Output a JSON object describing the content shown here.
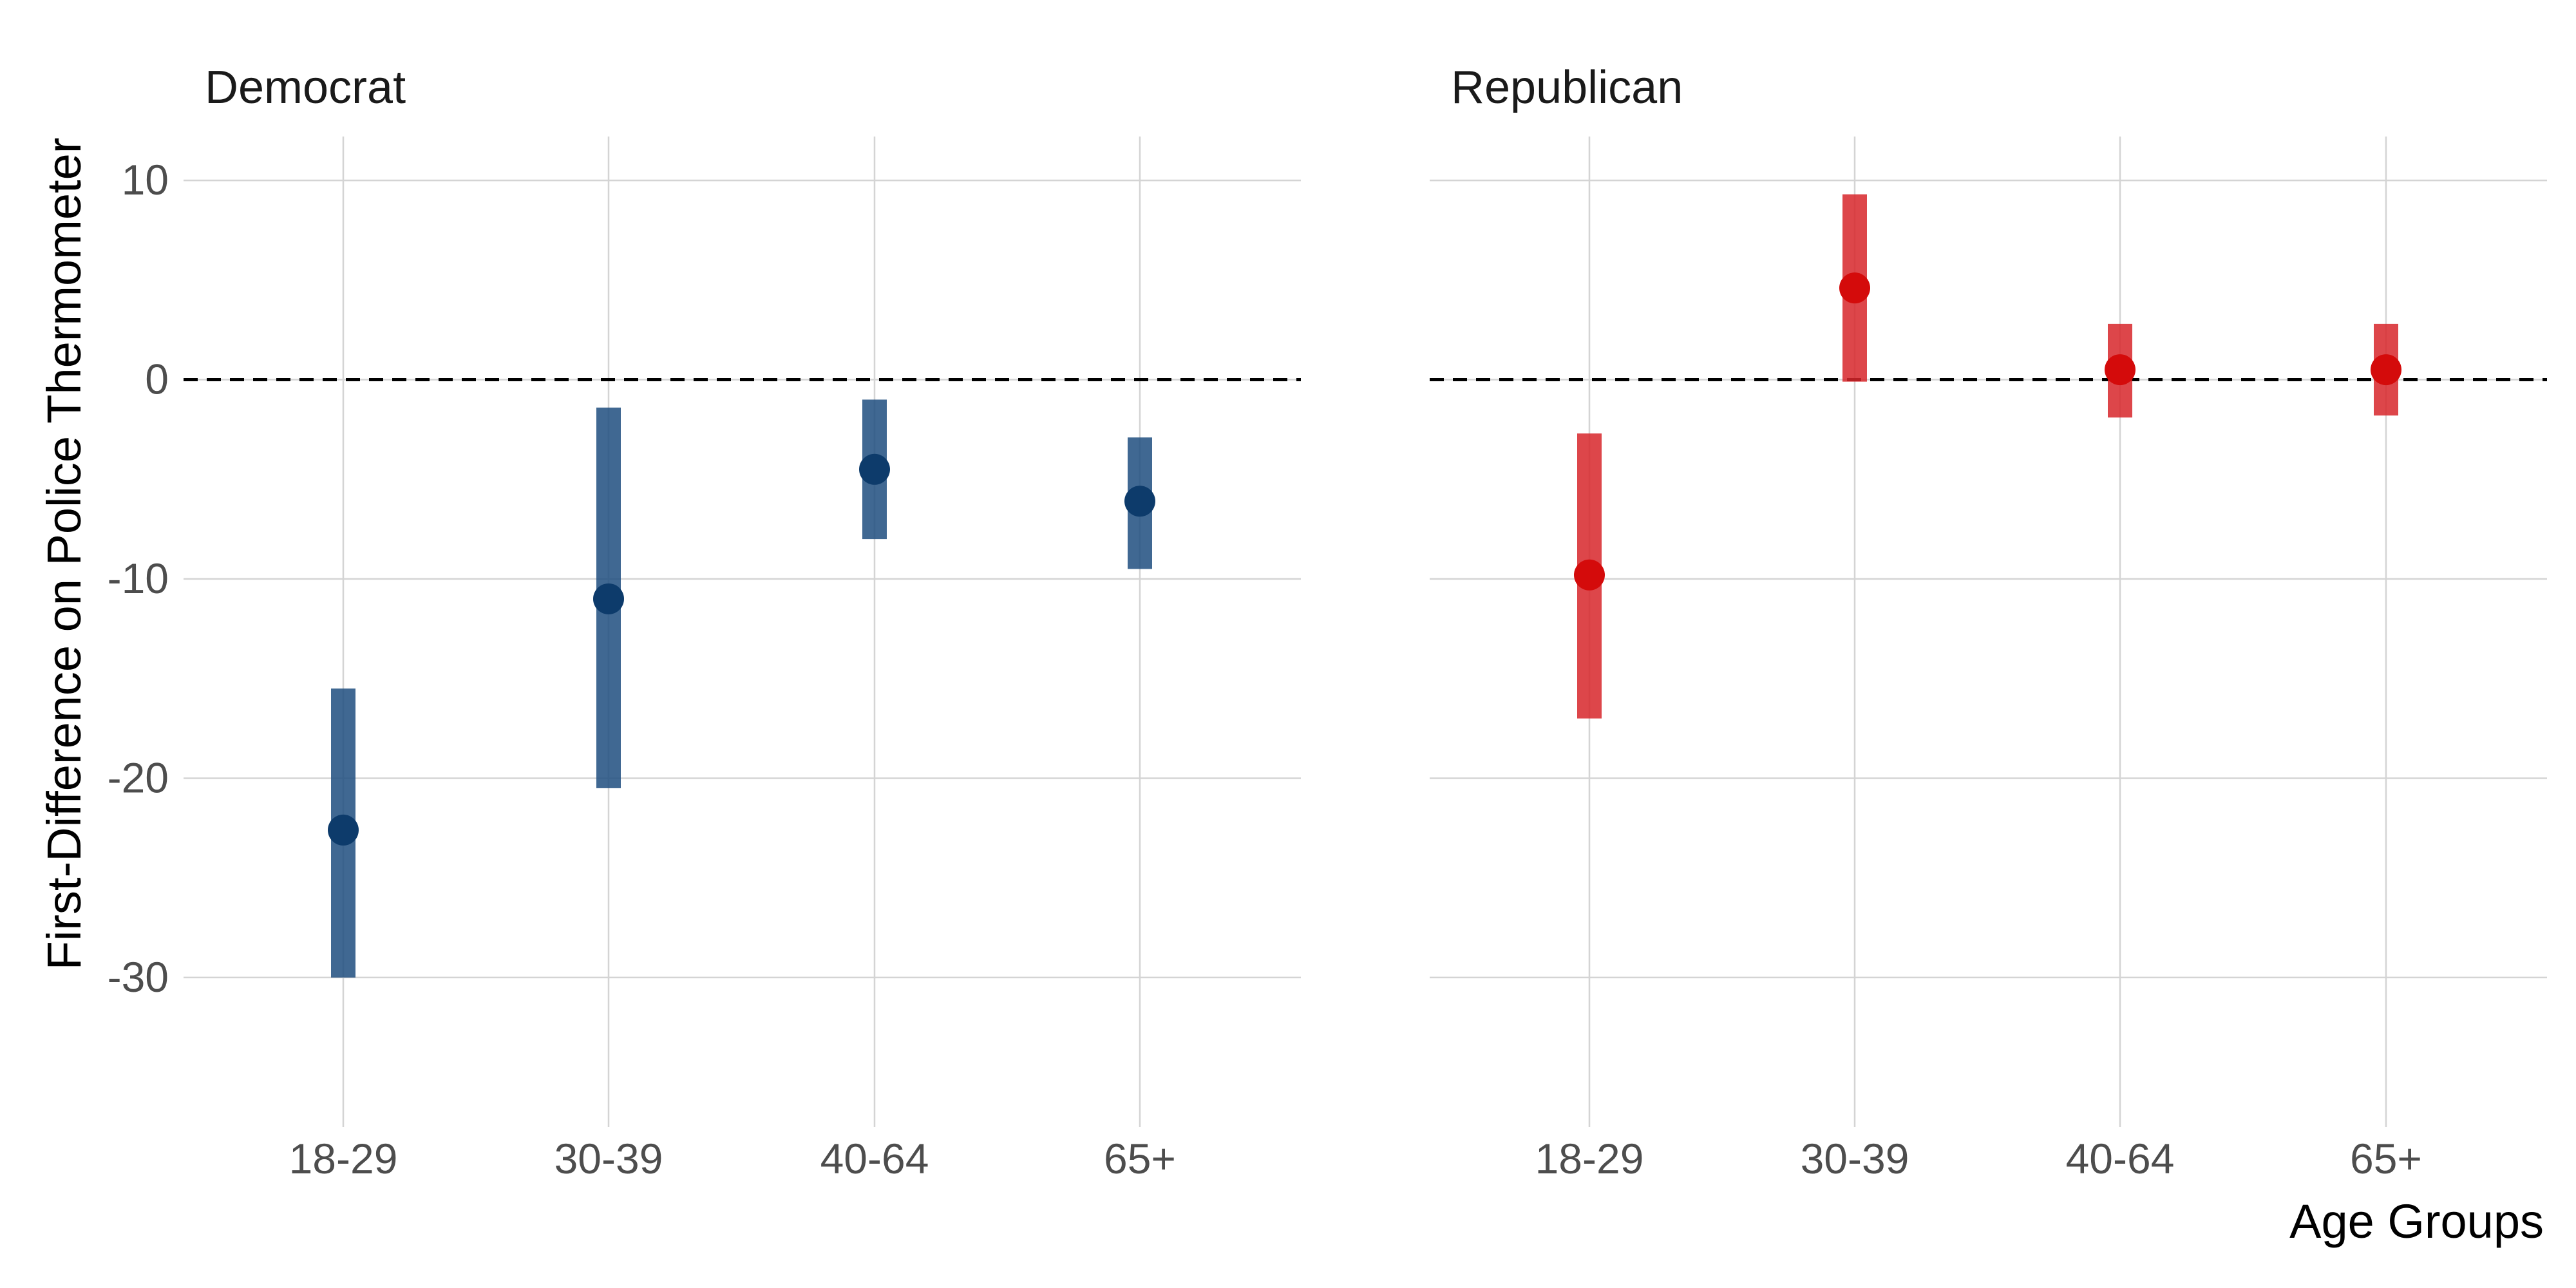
{
  "chart_data": {
    "type": "pointrange",
    "ylabel": "First-Difference on Police Thermometer",
    "xlabel": "Age Groups",
    "categories": [
      "18-29",
      "30-39",
      "40-64",
      "65+"
    ],
    "y_ticks": [
      10,
      0,
      -10,
      -20,
      -30
    ],
    "y_tick_labels": [
      "10",
      "0",
      "-10",
      "-20",
      "-30"
    ],
    "ylim": [
      -37.5,
      12.2
    ],
    "reference_line": 0,
    "grid": true,
    "legend": "none",
    "facets": [
      {
        "title": "Democrat",
        "color": "#1f4e7f",
        "point_color": "#0d3b6b",
        "estimates": [
          -22.6,
          -11.0,
          -4.5,
          -6.1
        ],
        "lower": [
          -30.0,
          -20.5,
          -8.0,
          -9.5
        ],
        "upper": [
          -15.5,
          -1.4,
          -1.0,
          -2.9
        ]
      },
      {
        "title": "Republican",
        "color": "#d7262a",
        "point_color": "#d40b0b",
        "estimates": [
          -9.8,
          4.6,
          0.5,
          0.5
        ],
        "lower": [
          -17.0,
          -0.1,
          -1.9,
          -1.8
        ],
        "upper": [
          -2.7,
          9.3,
          2.8,
          2.8
        ]
      }
    ]
  }
}
